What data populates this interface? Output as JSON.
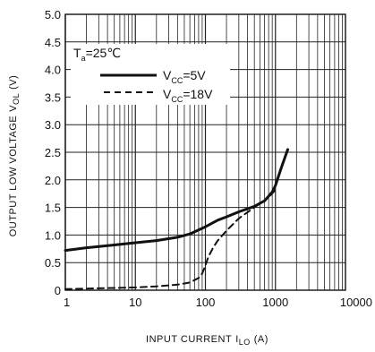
{
  "chart_data": {
    "type": "line",
    "title": "",
    "xlabel": "INPUT CURRENT",
    "xlabel_symbol": "I",
    "xlabel_subscript": "LO",
    "xlabel_unit": "(A)",
    "ylabel": "OUTPUT LOW VOLTAGE",
    "ylabel_symbol": "V",
    "ylabel_subscript": "OL",
    "ylabel_unit": "(V)",
    "x_scale": "log",
    "xlim": [
      1,
      10000
    ],
    "ylim": [
      0,
      5.0
    ],
    "x_ticks": [
      1,
      10,
      100,
      1000,
      10000
    ],
    "x_tick_labels": [
      "1",
      "10",
      "100",
      "1000",
      "10000"
    ],
    "y_ticks": [
      0,
      0.5,
      1.0,
      1.5,
      2.0,
      2.5,
      3.0,
      3.5,
      4.0,
      4.5,
      5.0
    ],
    "y_tick_labels": [
      "0",
      "0.5",
      "1.0",
      "1.5",
      "2.0",
      "2.5",
      "3.0",
      "3.5",
      "4.0",
      "4.5",
      "5.0"
    ],
    "grid": true,
    "legend": {
      "placement": "top-left",
      "condition_symbol": "T",
      "condition_subscript": "a",
      "condition_value": "=25℃",
      "entries": [
        {
          "symbol": "V",
          "subscript": "CC",
          "value": "=5V",
          "style": "solid"
        },
        {
          "symbol": "V",
          "subscript": "CC",
          "value": "=18V",
          "style": "dashed"
        }
      ]
    },
    "series": [
      {
        "style": "solid",
        "x": [
          1,
          2,
          5,
          10,
          20,
          40,
          60,
          100,
          150,
          200,
          300,
          500,
          700,
          900,
          1000,
          1200,
          1500
        ],
        "y": [
          0.72,
          0.77,
          0.82,
          0.86,
          0.9,
          0.96,
          1.02,
          1.15,
          1.27,
          1.33,
          1.42,
          1.52,
          1.62,
          1.78,
          1.9,
          2.2,
          2.55
        ]
      },
      {
        "style": "dashed",
        "x": [
          1,
          2,
          5,
          10,
          20,
          40,
          60,
          80,
          90,
          100,
          110,
          130,
          150,
          200,
          300,
          500,
          800,
          1000
        ],
        "y": [
          0.02,
          0.03,
          0.04,
          0.05,
          0.07,
          0.1,
          0.14,
          0.22,
          0.3,
          0.45,
          0.6,
          0.78,
          0.9,
          1.08,
          1.3,
          1.5,
          1.68,
          1.82
        ]
      }
    ]
  }
}
